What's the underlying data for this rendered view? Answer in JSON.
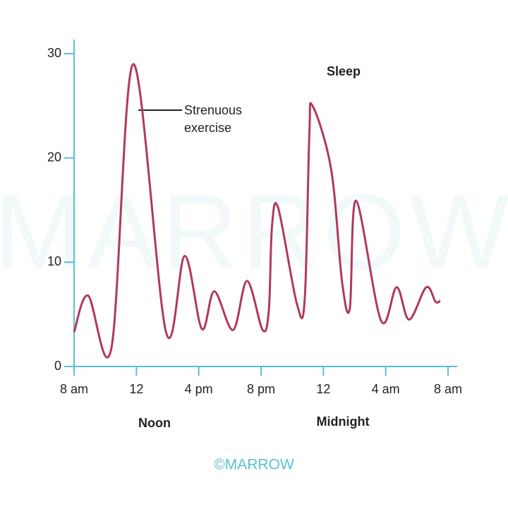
{
  "chart_data": {
    "type": "line",
    "x": [
      0,
      0.9,
      2.4,
      3.8,
      5.9,
      7.1,
      8.2,
      9.0,
      10.2,
      11.1,
      12.1,
      12.5,
      12.7,
      13.1,
      14.3,
      14.8,
      15.1,
      15.3,
      16.5,
      17.2,
      17.7,
      18.1,
      19.7,
      20.7,
      21.5,
      22.6,
      23.2,
      23.5
    ],
    "series": [
      {
        "color": "#b03a5b",
        "values": [
          3.3,
          6.8,
          1.8,
          29,
          3.3,
          10.6,
          3.6,
          7.2,
          3.5,
          8.2,
          3.5,
          5.4,
          13.4,
          15.2,
          6.0,
          6.4,
          22.3,
          25,
          18.9,
          8.1,
          5.6,
          15.9,
          4.4,
          7.6,
          4.5,
          7.6,
          6.2,
          6.3
        ]
      }
    ],
    "xlim": [
      0,
      24
    ],
    "xticks": [
      {
        "value": 0,
        "label": "8 am"
      },
      {
        "value": 4,
        "label": "12"
      },
      {
        "value": 8,
        "label": "4 pm"
      },
      {
        "value": 12,
        "label": "8 pm"
      },
      {
        "value": 16,
        "label": "12"
      },
      {
        "value": 20,
        "label": "4 am"
      },
      {
        "value": 24,
        "label": "8 am"
      }
    ],
    "ylim": [
      0,
      30
    ],
    "yticks": [
      0,
      10,
      20,
      30
    ],
    "axis_color": "#5bc0d0",
    "annotations": {
      "exercise": [
        "Strenuous",
        "exercise"
      ],
      "sleep": "Sleep",
      "noon": "Noon",
      "midnight": "Midnight"
    },
    "watermark": "MARROW",
    "credit": "©MARROW"
  }
}
